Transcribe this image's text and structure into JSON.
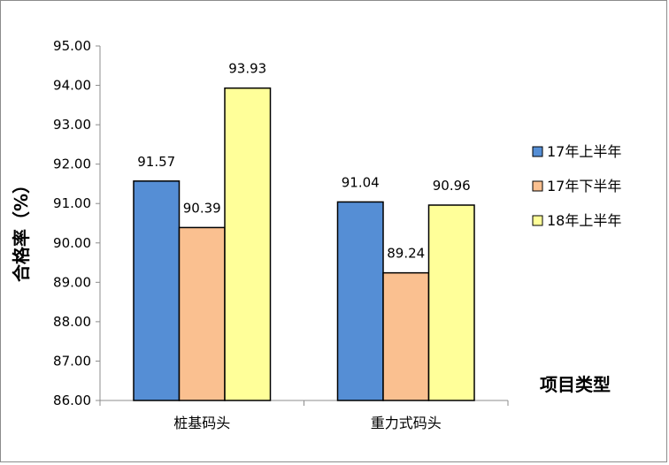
{
  "chart_data": {
    "type": "bar",
    "categories": [
      "桩基码头",
      "重力式码头"
    ],
    "series": [
      {
        "name": "17年上半年",
        "values": [
          91.57,
          91.04
        ],
        "color": "#558ED5"
      },
      {
        "name": "17年下半年",
        "values": [
          90.39,
          89.24
        ],
        "color": "#FAC090"
      },
      {
        "name": "18年上半年",
        "values": [
          93.93,
          90.96
        ],
        "color": "#FFFF99"
      }
    ],
    "data_labels": [
      [
        "91.57",
        "91.04"
      ],
      [
        "90.39",
        "89.24"
      ],
      [
        "93.93",
        "90.96"
      ]
    ],
    "ylabel": "合格率（%）",
    "xlabel": "项目类型",
    "ylim": [
      86.0,
      95.0
    ],
    "yticks": [
      "86.00",
      "87.00",
      "88.00",
      "89.00",
      "90.00",
      "91.00",
      "92.00",
      "93.00",
      "94.00",
      "95.00"
    ],
    "grid": false,
    "legend_position": "right"
  }
}
